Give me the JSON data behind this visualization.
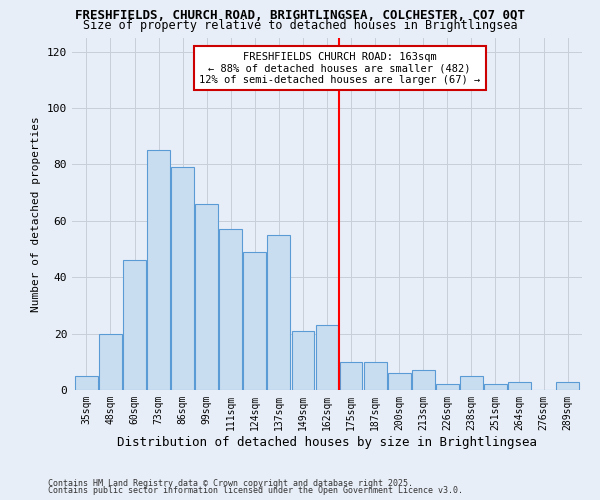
{
  "title1": "FRESHFIELDS, CHURCH ROAD, BRIGHTLINGSEA, COLCHESTER, CO7 0QT",
  "title2": "Size of property relative to detached houses in Brightlingsea",
  "xlabel": "Distribution of detached houses by size in Brightlingsea",
  "ylabel": "Number of detached properties",
  "footnote1": "Contains HM Land Registry data © Crown copyright and database right 2025.",
  "footnote2": "Contains public sector information licensed under the Open Government Licence v3.0.",
  "bar_labels": [
    "35sqm",
    "48sqm",
    "60sqm",
    "73sqm",
    "86sqm",
    "99sqm",
    "111sqm",
    "124sqm",
    "137sqm",
    "149sqm",
    "162sqm",
    "175sqm",
    "187sqm",
    "200sqm",
    "213sqm",
    "226sqm",
    "238sqm",
    "251sqm",
    "264sqm",
    "276sqm",
    "289sqm"
  ],
  "bar_values": [
    5,
    20,
    46,
    85,
    79,
    66,
    57,
    49,
    55,
    21,
    23,
    10,
    10,
    6,
    7,
    2,
    5,
    2,
    3,
    0,
    3
  ],
  "bar_color": "#c9ddf0",
  "bar_edge_color": "#5b9bd5",
  "grid_color": "#c8cfd8",
  "background_color": "#e8eef8",
  "vline_x_index": 10,
  "vline_color": "red",
  "annotation_title": "FRESHFIELDS CHURCH ROAD: 163sqm",
  "annotation_line1": "← 88% of detached houses are smaller (482)",
  "annotation_line2": "12% of semi-detached houses are larger (67) →",
  "ylim": [
    0,
    125
  ],
  "yticks": [
    0,
    20,
    40,
    60,
    80,
    100,
    120
  ]
}
